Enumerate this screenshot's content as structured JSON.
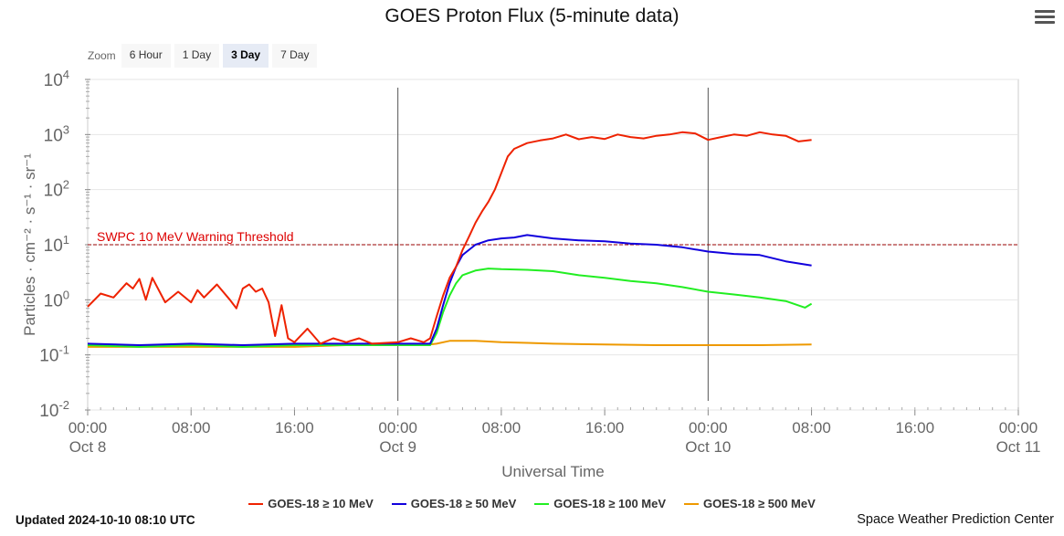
{
  "title": "GOES Proton Flux (5-minute data)",
  "zoom": {
    "label": "Zoom",
    "buttons": [
      "6 Hour",
      "1 Day",
      "3 Day",
      "7 Day"
    ],
    "active": "3 Day"
  },
  "footer": {
    "updated": "Updated 2024-10-10 08:10 UTC",
    "credit": "Space Weather Prediction Center"
  },
  "colors": {
    "ge10": "#ee2200",
    "ge50": "#1100dd",
    "ge100": "#22ee22",
    "ge500": "#ee9900",
    "threshold": "#990000",
    "threshold_label": "#dd0000"
  },
  "chart_data": {
    "type": "line",
    "title": "GOES Proton Flux (5-minute data)",
    "xlabel": "Universal Time",
    "ylabel": "Particles · cm⁻² · s⁻¹ · sr⁻¹",
    "yscale": "log",
    "ylim": [
      0.01,
      10000
    ],
    "xlim": [
      "2024-10-08 00:00",
      "2024-10-11 00:00"
    ],
    "grid": true,
    "legend_position": "bottom",
    "y_ticks": [
      {
        "base": "10",
        "exp": "4",
        "value": 10000
      },
      {
        "base": "10",
        "exp": "3",
        "value": 1000
      },
      {
        "base": "10",
        "exp": "2",
        "value": 100
      },
      {
        "base": "10",
        "exp": "1",
        "value": 10
      },
      {
        "base": "10",
        "exp": "0",
        "value": 1
      },
      {
        "base": "10",
        "exp": "-1",
        "value": 0.1
      },
      {
        "base": "10",
        "exp": "-2",
        "value": 0.01
      }
    ],
    "x_ticks": [
      {
        "time": "00:00",
        "date": "Oct 8",
        "t": "2024-10-08 00:00"
      },
      {
        "time": "08:00",
        "date": "",
        "t": "2024-10-08 08:00"
      },
      {
        "time": "16:00",
        "date": "",
        "t": "2024-10-08 16:00"
      },
      {
        "time": "00:00",
        "date": "Oct 9",
        "t": "2024-10-09 00:00"
      },
      {
        "time": "08:00",
        "date": "",
        "t": "2024-10-09 08:00"
      },
      {
        "time": "16:00",
        "date": "",
        "t": "2024-10-09 16:00"
      },
      {
        "time": "00:00",
        "date": "Oct 10",
        "t": "2024-10-10 00:00"
      },
      {
        "time": "08:00",
        "date": "",
        "t": "2024-10-10 08:00"
      },
      {
        "time": "16:00",
        "date": "",
        "t": "2024-10-10 16:00"
      },
      {
        "time": "00:00",
        "date": "Oct 11",
        "t": "2024-10-11 00:00"
      }
    ],
    "day_markers": [
      "2024-10-09 00:00",
      "2024-10-10 00:00"
    ],
    "threshold": {
      "label": "SWPC 10 MeV Warning Threshold",
      "value": 10
    },
    "series": [
      {
        "name": "GOES-18 ≥ 10 MeV",
        "color": "#ee2200",
        "points": [
          [
            "2024-10-08 00:00",
            0.75
          ],
          [
            "2024-10-08 01:00",
            1.3
          ],
          [
            "2024-10-08 02:00",
            1.1
          ],
          [
            "2024-10-08 03:00",
            2.0
          ],
          [
            "2024-10-08 03:30",
            1.6
          ],
          [
            "2024-10-08 04:00",
            2.4
          ],
          [
            "2024-10-08 04:30",
            1.0
          ],
          [
            "2024-10-08 05:00",
            2.5
          ],
          [
            "2024-10-08 06:00",
            0.9
          ],
          [
            "2024-10-08 07:00",
            1.4
          ],
          [
            "2024-10-08 08:00",
            0.9
          ],
          [
            "2024-10-08 08:30",
            1.5
          ],
          [
            "2024-10-08 09:00",
            1.1
          ],
          [
            "2024-10-08 10:00",
            1.9
          ],
          [
            "2024-10-08 11:00",
            1.0
          ],
          [
            "2024-10-08 11:30",
            0.7
          ],
          [
            "2024-10-08 12:00",
            1.6
          ],
          [
            "2024-10-08 12:30",
            1.9
          ],
          [
            "2024-10-08 13:00",
            1.4
          ],
          [
            "2024-10-08 13:30",
            1.6
          ],
          [
            "2024-10-08 14:00",
            0.9
          ],
          [
            "2024-10-08 14:30",
            0.22
          ],
          [
            "2024-10-08 15:00",
            0.8
          ],
          [
            "2024-10-08 15:30",
            0.2
          ],
          [
            "2024-10-08 16:00",
            0.17
          ],
          [
            "2024-10-08 17:00",
            0.3
          ],
          [
            "2024-10-08 18:00",
            0.16
          ],
          [
            "2024-10-08 19:00",
            0.2
          ],
          [
            "2024-10-08 20:00",
            0.17
          ],
          [
            "2024-10-08 21:00",
            0.2
          ],
          [
            "2024-10-08 22:00",
            0.16
          ],
          [
            "2024-10-09 00:00",
            0.17
          ],
          [
            "2024-10-09 01:00",
            0.2
          ],
          [
            "2024-10-09 02:00",
            0.17
          ],
          [
            "2024-10-09 02:30",
            0.2
          ],
          [
            "2024-10-09 03:00",
            0.5
          ],
          [
            "2024-10-09 03:30",
            1.2
          ],
          [
            "2024-10-09 04:00",
            2.5
          ],
          [
            "2024-10-09 04:30",
            4.0
          ],
          [
            "2024-10-09 05:00",
            8.0
          ],
          [
            "2024-10-09 05:30",
            14
          ],
          [
            "2024-10-09 06:00",
            25
          ],
          [
            "2024-10-09 06:30",
            40
          ],
          [
            "2024-10-09 07:00",
            60
          ],
          [
            "2024-10-09 07:30",
            100
          ],
          [
            "2024-10-09 08:00",
            200
          ],
          [
            "2024-10-09 08:30",
            400
          ],
          [
            "2024-10-09 09:00",
            550
          ],
          [
            "2024-10-09 10:00",
            700
          ],
          [
            "2024-10-09 11:00",
            780
          ],
          [
            "2024-10-09 12:00",
            850
          ],
          [
            "2024-10-09 13:00",
            1000
          ],
          [
            "2024-10-09 14:00",
            820
          ],
          [
            "2024-10-09 15:00",
            900
          ],
          [
            "2024-10-09 16:00",
            830
          ],
          [
            "2024-10-09 17:00",
            1000
          ],
          [
            "2024-10-09 18:00",
            900
          ],
          [
            "2024-10-09 19:00",
            850
          ],
          [
            "2024-10-09 20:00",
            950
          ],
          [
            "2024-10-09 21:00",
            1000
          ],
          [
            "2024-10-09 22:00",
            1100
          ],
          [
            "2024-10-09 23:00",
            1050
          ],
          [
            "2024-10-10 00:00",
            800
          ],
          [
            "2024-10-10 01:00",
            900
          ],
          [
            "2024-10-10 02:00",
            1000
          ],
          [
            "2024-10-10 03:00",
            950
          ],
          [
            "2024-10-10 04:00",
            1100
          ],
          [
            "2024-10-10 05:00",
            1000
          ],
          [
            "2024-10-10 06:00",
            950
          ],
          [
            "2024-10-10 07:00",
            750
          ],
          [
            "2024-10-10 08:00",
            800
          ]
        ]
      },
      {
        "name": "GOES-18 ≥ 50 MeV",
        "color": "#1100dd",
        "points": [
          [
            "2024-10-08 00:00",
            0.16
          ],
          [
            "2024-10-08 04:00",
            0.15
          ],
          [
            "2024-10-08 08:00",
            0.16
          ],
          [
            "2024-10-08 12:00",
            0.15
          ],
          [
            "2024-10-08 16:00",
            0.16
          ],
          [
            "2024-10-08 20:00",
            0.16
          ],
          [
            "2024-10-09 00:00",
            0.16
          ],
          [
            "2024-10-09 02:30",
            0.16
          ],
          [
            "2024-10-09 03:00",
            0.3
          ],
          [
            "2024-10-09 03:30",
            0.8
          ],
          [
            "2024-10-09 04:00",
            2.0
          ],
          [
            "2024-10-09 04:30",
            4.0
          ],
          [
            "2024-10-09 05:00",
            6.5
          ],
          [
            "2024-10-09 06:00",
            10
          ],
          [
            "2024-10-09 07:00",
            12
          ],
          [
            "2024-10-09 08:00",
            13
          ],
          [
            "2024-10-09 09:00",
            13.5
          ],
          [
            "2024-10-09 10:00",
            15
          ],
          [
            "2024-10-09 11:00",
            14
          ],
          [
            "2024-10-09 12:00",
            13
          ],
          [
            "2024-10-09 14:00",
            12
          ],
          [
            "2024-10-09 16:00",
            11.5
          ],
          [
            "2024-10-09 18:00",
            10.5
          ],
          [
            "2024-10-09 20:00",
            10
          ],
          [
            "2024-10-09 22:00",
            9
          ],
          [
            "2024-10-10 00:00",
            7.5
          ],
          [
            "2024-10-10 02:00",
            6.8
          ],
          [
            "2024-10-10 04:00",
            6.5
          ],
          [
            "2024-10-10 06:00",
            5.0
          ],
          [
            "2024-10-10 08:00",
            4.2
          ]
        ]
      },
      {
        "name": "GOES-18 ≥ 100 MeV",
        "color": "#22ee22",
        "points": [
          [
            "2024-10-08 00:00",
            0.15
          ],
          [
            "2024-10-08 04:00",
            0.14
          ],
          [
            "2024-10-08 08:00",
            0.15
          ],
          [
            "2024-10-08 12:00",
            0.14
          ],
          [
            "2024-10-08 16:00",
            0.15
          ],
          [
            "2024-10-08 20:00",
            0.15
          ],
          [
            "2024-10-09 00:00",
            0.15
          ],
          [
            "2024-10-09 02:30",
            0.15
          ],
          [
            "2024-10-09 03:00",
            0.25
          ],
          [
            "2024-10-09 03:30",
            0.6
          ],
          [
            "2024-10-09 04:00",
            1.2
          ],
          [
            "2024-10-09 04:30",
            2.0
          ],
          [
            "2024-10-09 05:00",
            2.8
          ],
          [
            "2024-10-09 06:00",
            3.4
          ],
          [
            "2024-10-09 07:00",
            3.7
          ],
          [
            "2024-10-09 08:00",
            3.6
          ],
          [
            "2024-10-09 10:00",
            3.5
          ],
          [
            "2024-10-09 12:00",
            3.3
          ],
          [
            "2024-10-09 14:00",
            2.8
          ],
          [
            "2024-10-09 16:00",
            2.5
          ],
          [
            "2024-10-09 18:00",
            2.2
          ],
          [
            "2024-10-09 20:00",
            2.0
          ],
          [
            "2024-10-09 22:00",
            1.7
          ],
          [
            "2024-10-10 00:00",
            1.4
          ],
          [
            "2024-10-10 02:00",
            1.25
          ],
          [
            "2024-10-10 04:00",
            1.1
          ],
          [
            "2024-10-10 06:00",
            0.95
          ],
          [
            "2024-10-10 07:30",
            0.72
          ],
          [
            "2024-10-10 08:00",
            0.85
          ]
        ]
      },
      {
        "name": "GOES-18 ≥ 500 MeV",
        "color": "#ee9900",
        "points": [
          [
            "2024-10-08 00:00",
            0.14
          ],
          [
            "2024-10-08 04:00",
            0.14
          ],
          [
            "2024-10-08 08:00",
            0.14
          ],
          [
            "2024-10-08 12:00",
            0.14
          ],
          [
            "2024-10-08 16:00",
            0.14
          ],
          [
            "2024-10-08 20:00",
            0.15
          ],
          [
            "2024-10-09 00:00",
            0.15
          ],
          [
            "2024-10-09 02:00",
            0.15
          ],
          [
            "2024-10-09 03:00",
            0.16
          ],
          [
            "2024-10-09 04:00",
            0.18
          ],
          [
            "2024-10-09 05:00",
            0.18
          ],
          [
            "2024-10-09 06:00",
            0.18
          ],
          [
            "2024-10-09 08:00",
            0.17
          ],
          [
            "2024-10-09 10:00",
            0.165
          ],
          [
            "2024-10-09 12:00",
            0.16
          ],
          [
            "2024-10-09 16:00",
            0.155
          ],
          [
            "2024-10-09 20:00",
            0.15
          ],
          [
            "2024-10-10 00:00",
            0.15
          ],
          [
            "2024-10-10 04:00",
            0.15
          ],
          [
            "2024-10-10 08:00",
            0.155
          ]
        ]
      }
    ]
  }
}
